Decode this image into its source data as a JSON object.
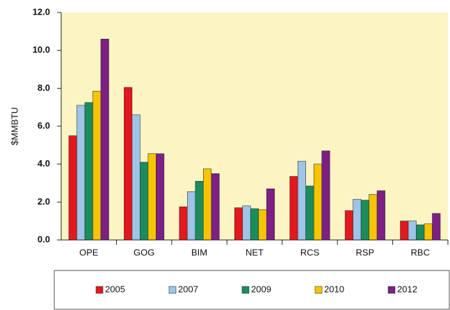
{
  "chart_data": {
    "type": "bar",
    "ylabel": "$MMBTU",
    "categories": [
      "OPE",
      "GOG",
      "BIM",
      "NET",
      "RCS",
      "RSP",
      "RBC"
    ],
    "series": [
      {
        "name": "2005",
        "color": "#e3171c",
        "values": [
          5.5,
          8.05,
          1.75,
          1.7,
          3.35,
          1.55,
          1.0
        ]
      },
      {
        "name": "2007",
        "color": "#9ec4e8",
        "values": [
          7.1,
          6.6,
          2.55,
          1.8,
          4.15,
          2.15,
          1.0
        ]
      },
      {
        "name": "2009",
        "color": "#1b8c5c",
        "values": [
          7.25,
          4.1,
          3.1,
          1.65,
          2.85,
          2.1,
          0.8
        ]
      },
      {
        "name": "2010",
        "color": "#f6c500",
        "values": [
          7.85,
          4.55,
          3.75,
          1.6,
          4.0,
          2.4,
          0.85
        ]
      },
      {
        "name": "2012",
        "color": "#7d1f84",
        "values": [
          10.6,
          4.55,
          3.5,
          2.7,
          4.7,
          2.6,
          1.4
        ]
      }
    ],
    "ylim": [
      0,
      12
    ],
    "yticks": [
      {
        "value": 0,
        "label": "0.0"
      },
      {
        "value": 2,
        "label": "2.0"
      },
      {
        "value": 4,
        "label": "4.0"
      },
      {
        "value": 6,
        "label": "6.0"
      },
      {
        "value": 8,
        "label": "8.0"
      },
      {
        "value": 10,
        "label": "10.0"
      },
      {
        "value": 12,
        "label": "12.0"
      }
    ],
    "legend": "bottom"
  }
}
